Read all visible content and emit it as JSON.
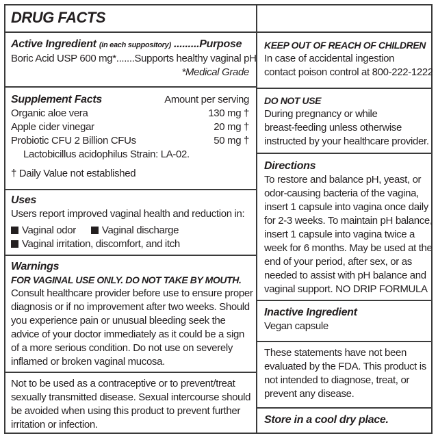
{
  "title": "DRUG FACTS",
  "active": {
    "heading": "Active Ingredient",
    "heading_note": "(in each suppository)",
    "heading_purpose": " .........Purpose",
    "line": "Boric Acid USP 600 mg*.......Supports healthy vaginal pH",
    "footnote": "*Medical Grade"
  },
  "supplement": {
    "heading": "Supplement Facts",
    "amount_header": "Amount per serving",
    "rows": [
      {
        "name": "Organic aloe vera",
        "amount": "130 mg †"
      },
      {
        "name": "Apple cider vinegar",
        "amount": "20 mg †"
      },
      {
        "name": "Probiotic CFU 2 Billion CFUs",
        "amount": "50 mg †"
      }
    ],
    "strain": "Lactobicillus acidophilus Strain: LA-02.",
    "daily_value": "† Daily Value not established"
  },
  "uses": {
    "heading": "Uses",
    "intro": "Users report improved vaginal health and reduction in:",
    "items": [
      "Vaginal odor",
      "Vaginal discharge",
      "Vaginal irritation, discomfort, and itch"
    ]
  },
  "warnings": {
    "heading": "Warnings",
    "caution": "FOR VAGINAL USE ONLY. DO NOT TAKE BY MOUTH.",
    "lines": [
      "Consult healthcare provider before use to ensure proper",
      "diagnosis or if no improvement after two weeks. Should",
      "you experience pain or unusual bleeding seek the",
      "advice of your doctor immediately as it could be a sign",
      "of a more serious condition. Do not use on severely",
      "inflamed or broken vaginal mucosa."
    ]
  },
  "contraceptive": {
    "lines": [
      "Not to be used as a contraceptive or to prevent/treat",
      "sexually transmitted disease. Sexual intercourse should",
      "be avoided when using this product to prevent further",
      "irritation or infection."
    ]
  },
  "keep_out": {
    "heading": "KEEP OUT OF REACH OF CHILDREN",
    "lines": [
      "In case of accidental ingestion",
      "contact poison control at 800-222-1222."
    ]
  },
  "do_not_use": {
    "heading": "DO NOT USE",
    "lines": [
      "During pregnancy or while",
      "breast-feeding unless otherwise",
      "instructed by your healthcare provider."
    ]
  },
  "directions": {
    "heading": "Directions",
    "lines": [
      "To restore and balance pH, yeast, or",
      "odor-causing bacteria of the vagina,",
      "insert 1 capsule into vagina once daily",
      "for 2-3 weeks.  To maintain pH balance,",
      "insert 1 capsule into vagina twice a",
      "week for 6 months. May be used at the",
      "end of your period, after sex, or as",
      "needed to assist with pH balance and",
      "vaginal support. NO DRIP FORMULA"
    ]
  },
  "inactive": {
    "heading": "Inactive Ingredient",
    "value": "Vegan capsule"
  },
  "fda": {
    "lines": [
      "These statements have not been",
      "evaluated by the FDA. This product is",
      "not intended to diagnose, treat, or",
      "prevent any disease."
    ]
  },
  "storage": "Store in a cool dry place."
}
